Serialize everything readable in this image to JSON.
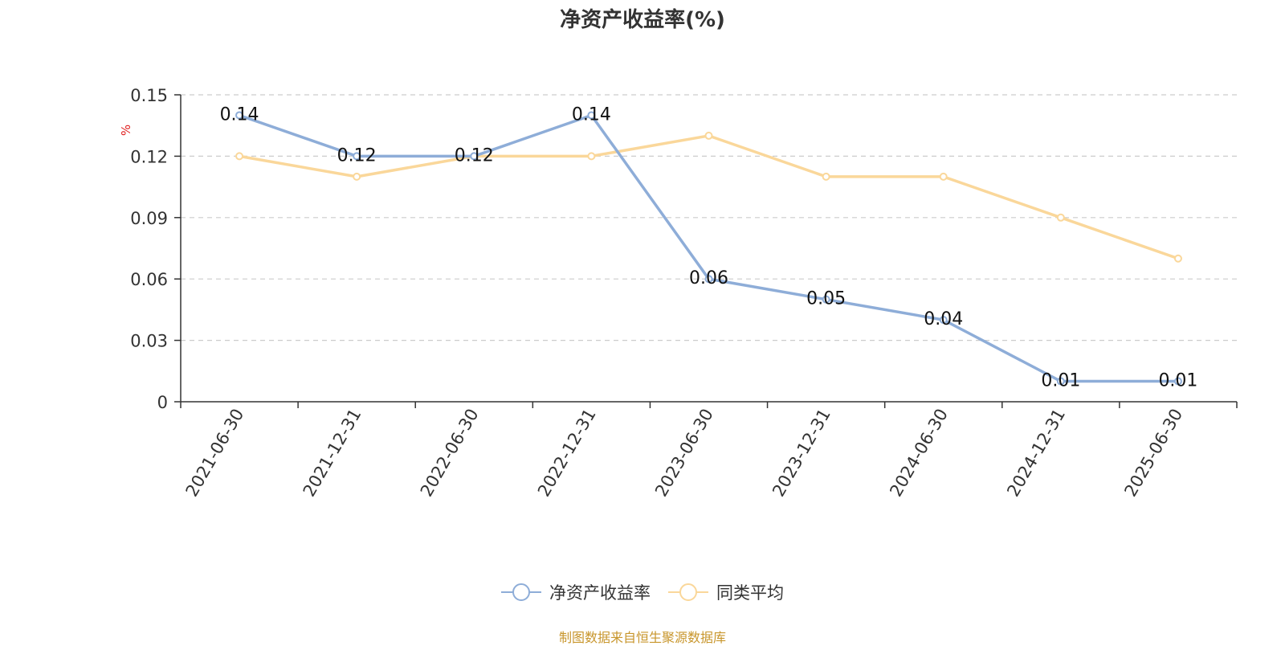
{
  "chart_data": {
    "type": "line",
    "title": "净资产收益率(%)",
    "ylabel": "%",
    "xlabel": "",
    "categories": [
      "2021-06-30",
      "2021-12-31",
      "2022-06-30",
      "2022-12-31",
      "2023-06-30",
      "2023-12-31",
      "2024-06-30",
      "2024-12-31",
      "2025-06-30"
    ],
    "ylim": [
      0,
      0.15
    ],
    "yticks": [
      "0",
      "0.03",
      "0.06",
      "0.09",
      "0.12",
      "0.15"
    ],
    "grid": true,
    "legend_position": "bottom",
    "series": [
      {
        "name": "净资产收益率",
        "color": "#8eadd8",
        "values": [
          0.14,
          0.12,
          0.12,
          0.14,
          0.06,
          0.05,
          0.04,
          0.01,
          0.01
        ],
        "data_labels": [
          "0.14",
          "0.12",
          "0.12",
          "0.14",
          "0.06",
          "0.05",
          "0.04",
          "0.01",
          "0.01"
        ]
      },
      {
        "name": "同类平均",
        "color": "#fad79a",
        "values": [
          0.12,
          0.11,
          0.12,
          0.12,
          0.13,
          0.11,
          0.11,
          0.09,
          0.07
        ]
      }
    ]
  },
  "source_note": "制图数据来自恒生聚源数据库"
}
